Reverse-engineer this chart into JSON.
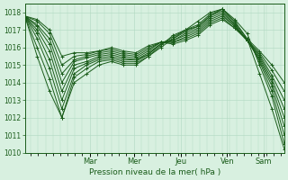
{
  "background_color": "#d8f0e0",
  "grid_color": "#b0d8c0",
  "line_color": "#1a5c1a",
  "marker_color": "#1a5c1a",
  "ylabel_text": "Pression niveau de la mer( hPa )",
  "ylim": [
    1010,
    1018.5
  ],
  "yticks": [
    1010,
    1011,
    1012,
    1013,
    1014,
    1015,
    1016,
    1017,
    1018
  ],
  "day_labels": [
    "Mar",
    "Mer",
    "Jeu",
    "Ven",
    "Sam"
  ],
  "day_positions": [
    0.25,
    0.42,
    0.6,
    0.78,
    0.92
  ],
  "series": [
    [
      1017.8,
      1015.5,
      1013.5,
      1012.0,
      1014.0,
      1014.5,
      1015.0,
      1015.2,
      1015.0,
      1015.0,
      1015.5,
      1016.0,
      1016.5,
      1017.0,
      1017.5,
      1018.0,
      1018.2,
      1017.5,
      1016.5,
      1014.5,
      1012.5,
      1010.2
    ],
    [
      1017.8,
      1016.0,
      1014.2,
      1012.0,
      1014.3,
      1014.8,
      1015.2,
      1015.3,
      1015.1,
      1015.1,
      1015.5,
      1016.1,
      1016.7,
      1017.0,
      1017.2,
      1017.8,
      1018.2,
      1017.6,
      1016.8,
      1015.0,
      1013.2,
      1010.5
    ],
    [
      1017.8,
      1016.5,
      1014.8,
      1012.5,
      1014.5,
      1015.0,
      1015.3,
      1015.4,
      1015.2,
      1015.2,
      1015.6,
      1016.2,
      1016.6,
      1017.0,
      1017.3,
      1017.9,
      1018.2,
      1017.4,
      1016.5,
      1015.2,
      1013.5,
      1011.0
    ],
    [
      1017.8,
      1016.8,
      1015.3,
      1013.0,
      1014.8,
      1015.1,
      1015.4,
      1015.5,
      1015.3,
      1015.3,
      1015.6,
      1016.2,
      1016.5,
      1016.9,
      1017.2,
      1017.8,
      1018.1,
      1017.3,
      1016.4,
      1015.3,
      1013.8,
      1011.5
    ],
    [
      1017.8,
      1017.0,
      1015.8,
      1013.5,
      1015.0,
      1015.2,
      1015.5,
      1015.6,
      1015.4,
      1015.3,
      1015.7,
      1016.2,
      1016.4,
      1016.8,
      1017.1,
      1017.7,
      1018.0,
      1017.3,
      1016.4,
      1015.4,
      1014.0,
      1012.0
    ],
    [
      1017.8,
      1017.2,
      1016.2,
      1014.0,
      1015.2,
      1015.4,
      1015.6,
      1015.7,
      1015.5,
      1015.4,
      1015.8,
      1016.3,
      1016.4,
      1016.7,
      1017.0,
      1017.6,
      1017.9,
      1017.2,
      1016.4,
      1015.5,
      1014.2,
      1012.5
    ],
    [
      1017.8,
      1017.3,
      1016.5,
      1014.5,
      1015.3,
      1015.5,
      1015.7,
      1015.8,
      1015.6,
      1015.5,
      1015.9,
      1016.3,
      1016.3,
      1016.6,
      1016.9,
      1017.5,
      1017.8,
      1017.2,
      1016.4,
      1015.6,
      1014.4,
      1013.0
    ],
    [
      1017.8,
      1017.5,
      1016.8,
      1015.0,
      1015.5,
      1015.6,
      1015.8,
      1015.9,
      1015.7,
      1015.6,
      1016.0,
      1016.3,
      1016.3,
      1016.5,
      1016.8,
      1017.4,
      1017.7,
      1017.1,
      1016.4,
      1015.7,
      1014.7,
      1013.5
    ],
    [
      1017.8,
      1017.6,
      1017.0,
      1015.5,
      1015.7,
      1015.7,
      1015.8,
      1016.0,
      1015.8,
      1015.7,
      1016.1,
      1016.3,
      1016.2,
      1016.4,
      1016.7,
      1017.3,
      1017.6,
      1017.1,
      1016.5,
      1015.8,
      1015.0,
      1014.0
    ]
  ]
}
